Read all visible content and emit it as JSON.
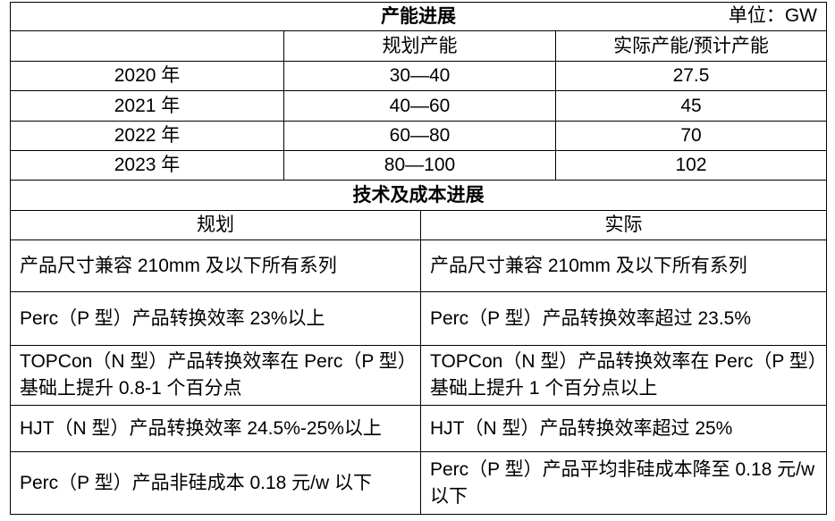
{
  "capacity": {
    "title": "产能进展",
    "unit": "单位：GW",
    "headers": [
      "",
      "规划产能",
      "实际产能/预计产能"
    ],
    "rows": [
      {
        "year": "2020 年",
        "planned": "30—40",
        "actual": "27.5"
      },
      {
        "year": "2021 年",
        "planned": "40—60",
        "actual": "45"
      },
      {
        "year": "2022 年",
        "planned": "60—80",
        "actual": "70"
      },
      {
        "year": "2023 年",
        "planned": "80—100",
        "actual": "102"
      }
    ]
  },
  "tech": {
    "title": "技术及成本进展",
    "headers": [
      "规划",
      "实际"
    ],
    "rows": [
      {
        "plan": "产品尺寸兼容 210mm 及以下所有系列",
        "actual": "产品尺寸兼容 210mm 及以下所有系列"
      },
      {
        "plan": "Perc（P 型）产品转换效率 23%以上",
        "actual": "Perc（P 型）产品转换效率超过 23.5%"
      },
      {
        "plan": "TOPCon（N 型）产品转换效率在 Perc（P 型）基础上提升 0.8-1 个百分点",
        "actual": "TOPCon（N 型）产品转换效率在 Perc（P 型）基础上提升 1 个百分点以上"
      },
      {
        "plan": "HJT（N 型）产品转换效率 24.5%-25%以上",
        "actual": "HJT（N 型）产品转换效率超过 25%"
      },
      {
        "plan": "Perc（P 型）产品非硅成本 0.18 元/w 以下",
        "actual": "Perc（P 型）产品平均非硅成本降至 0.18 元/w  以下"
      }
    ]
  }
}
